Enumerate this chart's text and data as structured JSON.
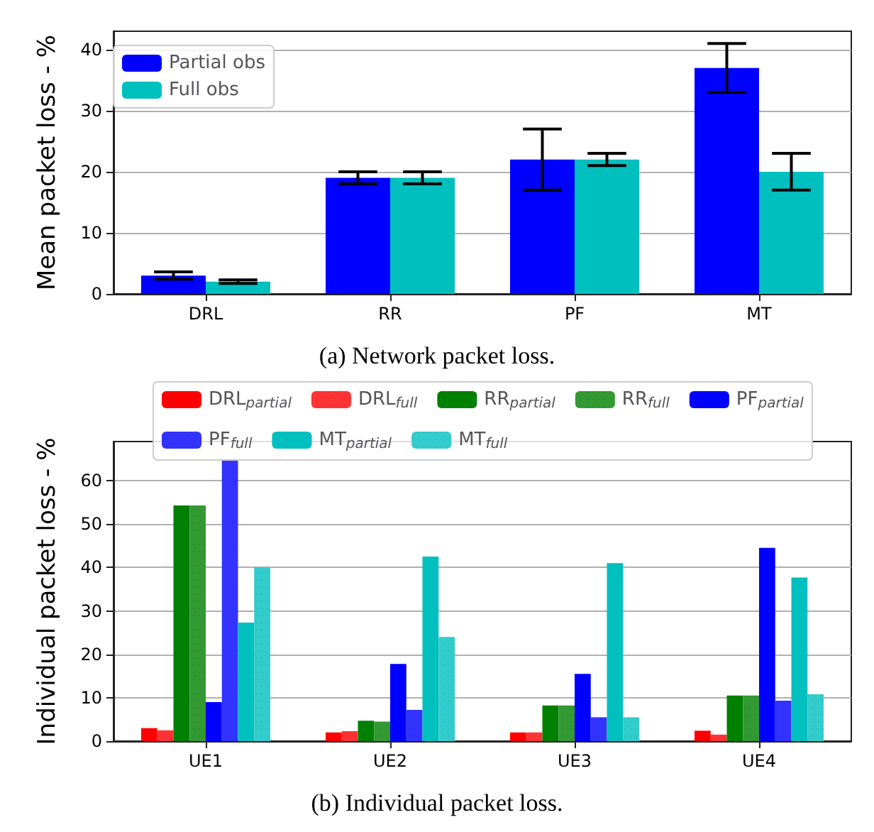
{
  "chart_data": [
    {
      "type": "bar",
      "ylabel": "Mean packet loss - %",
      "categories": [
        "DRL",
        "RR",
        "PF",
        "MT"
      ],
      "series": [
        {
          "name": "Partial obs",
          "color": "#0000ff",
          "values": [
            3,
            19,
            22,
            37
          ],
          "errors": [
            [
              2.4,
              3.6
            ],
            [
              18,
              20
            ],
            [
              17,
              27
            ],
            [
              33,
              41
            ]
          ]
        },
        {
          "name": "Full obs",
          "color": "#00bfbf",
          "values": [
            2,
            19,
            22,
            20
          ],
          "errors": [
            [
              1.7,
              2.3
            ],
            [
              18,
              20
            ],
            [
              21,
              23
            ],
            [
              17,
              23
            ]
          ]
        }
      ],
      "ylim": [
        0,
        43
      ],
      "yticks": [
        0,
        10,
        20,
        30,
        40
      ],
      "grid": "y",
      "legend": "top left",
      "annotations": [
        "(a) Network packet loss."
      ]
    },
    {
      "type": "bar",
      "ylabel": "Individual packet loss - %",
      "categories": [
        "UE1",
        "UE2",
        "UE3",
        "UE4"
      ],
      "series": [
        {
          "name": "DRL$_{partial}$",
          "color": "#ff0000",
          "values": [
            3,
            2,
            2,
            2.4
          ]
        },
        {
          "name": "DRL$_{full}$",
          "color": "#ff3333",
          "values": [
            2.5,
            2.3,
            2,
            1.5
          ]
        },
        {
          "name": "RR$_{partial}$",
          "color": "#008000",
          "values": [
            54.3,
            4.7,
            8.2,
            10.5
          ]
        },
        {
          "name": "RR$_{full}$",
          "color": "#339933",
          "values": [
            54.3,
            4.5,
            8.2,
            10.5
          ]
        },
        {
          "name": "PF$_{partial}$",
          "color": "#0000ff",
          "values": [
            9,
            17.8,
            15.5,
            44.5
          ]
        },
        {
          "name": "PF$_{full}$",
          "color": "#3333ff",
          "values": [
            65,
            7.2,
            5.5,
            9.3
          ]
        },
        {
          "name": "MT$_{partial}$",
          "color": "#00bfbf",
          "values": [
            27.3,
            42.5,
            41,
            37.7
          ]
        },
        {
          "name": "MT$_{full}$",
          "color": "#33cccc",
          "values": [
            40,
            24,
            5.5,
            10.8
          ]
        }
      ],
      "ylim": [
        0,
        69
      ],
      "yticks": [
        0,
        10,
        20,
        30,
        40,
        50,
        60
      ],
      "grid": "y",
      "legend": "top",
      "annotations": [
        "(b) Individual packet loss."
      ]
    }
  ]
}
